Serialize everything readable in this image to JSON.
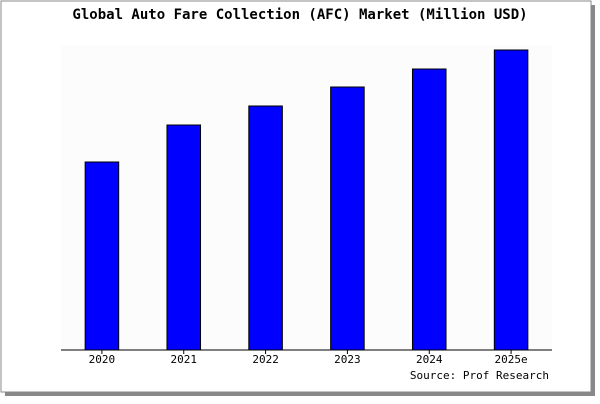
{
  "chart_data": {
    "type": "bar",
    "title": "Global Auto Fare Collection (AFC) Market (Million USD)",
    "categories": [
      "2020",
      "2021",
      "2022",
      "2023",
      "2024",
      "2025e"
    ],
    "values": [
      188,
      225,
      244,
      263,
      281,
      300
    ],
    "color": "#0000ff",
    "ylim": [
      0,
      305
    ],
    "source": "Source: Prof Research"
  }
}
